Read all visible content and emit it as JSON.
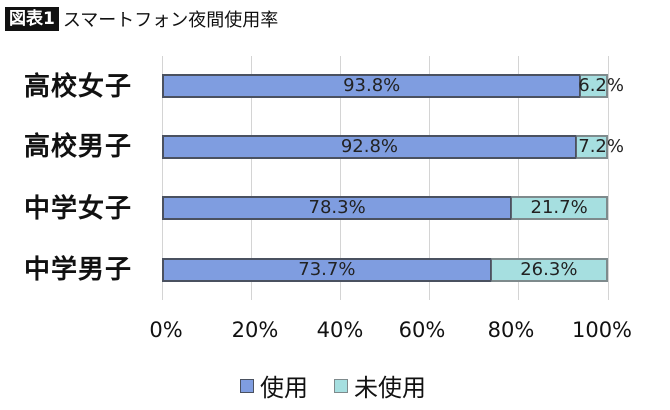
{
  "header": {
    "badge": "図表1",
    "title": "スマートフォン夜間使用率"
  },
  "legend": [
    {
      "label": "使用",
      "color": "#7f9de0"
    },
    {
      "label": "未使用",
      "color": "#a6dfe0"
    }
  ],
  "axis": {
    "ticks": [
      "0%",
      "20%",
      "40%",
      "60%",
      "80%",
      "100%"
    ]
  },
  "rows": [
    {
      "category": "高校女子",
      "used": 93.8,
      "unused": 6.2,
      "used_label": "93.8%",
      "unused_label": "6.2%"
    },
    {
      "category": "高校男子",
      "used": 92.8,
      "unused": 7.2,
      "used_label": "92.8%",
      "unused_label": "7.2%"
    },
    {
      "category": "中学女子",
      "used": 78.3,
      "unused": 21.7,
      "used_label": "78.3%",
      "unused_label": "21.7%"
    },
    {
      "category": "中学男子",
      "used": 73.7,
      "unused": 26.3,
      "used_label": "73.7%",
      "unused_label": "26.3%"
    }
  ],
  "chart_data": {
    "type": "bar",
    "orientation": "horizontal",
    "stacked": true,
    "title": "図表1 スマートフォン夜間使用率",
    "categories": [
      "高校女子",
      "高校男子",
      "中学女子",
      "中学男子"
    ],
    "series": [
      {
        "name": "使用",
        "values": [
          93.8,
          92.8,
          78.3,
          73.7
        ],
        "color": "#7f9de0"
      },
      {
        "name": "未使用",
        "values": [
          6.2,
          7.2,
          21.7,
          26.3
        ],
        "color": "#a6dfe0"
      }
    ],
    "xlabel": "",
    "ylabel": "",
    "xlim": [
      0,
      100
    ],
    "x_ticks": [
      "0%",
      "20%",
      "40%",
      "60%",
      "80%",
      "100%"
    ],
    "grid": true,
    "legend_position": "bottom",
    "data_labels": true
  }
}
